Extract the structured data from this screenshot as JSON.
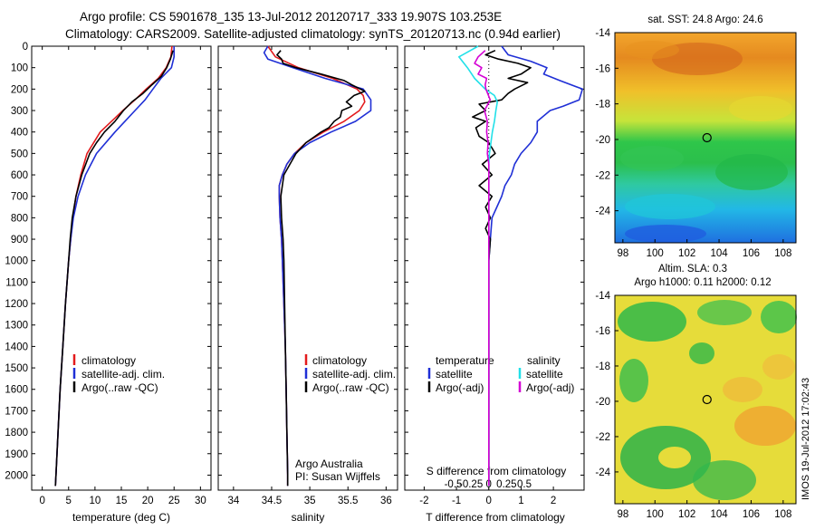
{
  "header": {
    "line1": "Argo profile: CS 5901678_135 13-Jul-2012 20120717_333 19.907S 103.253E",
    "line2": "Climatology: CARS2009. Satellite-adjusted climatology: synTS_20120713.nc (0.94d earlier)"
  },
  "side_stamp": "IMOS 19-Jul-2012 17:02:43",
  "colors": {
    "climatology": "#e31a1c",
    "satellite": "#1f2fd6",
    "argo": "#000000",
    "argo_s": "#d400d4",
    "sat_s": "#22e0e8"
  },
  "chart_data": [
    {
      "id": "temperature",
      "type": "line",
      "xlabel": "temperature (deg C)",
      "xlim": [
        -2,
        32
      ],
      "xticks": [
        0,
        5,
        10,
        15,
        20,
        25,
        30
      ],
      "ylim": [
        2070,
        0
      ],
      "yticks": [
        0,
        100,
        200,
        300,
        400,
        500,
        600,
        700,
        800,
        900,
        1000,
        1100,
        1200,
        1300,
        1400,
        1500,
        1600,
        1700,
        1800,
        1900,
        2000
      ],
      "legend": [
        "climatology",
        "satellite-adj. clim.",
        "Argo(..raw -QC)"
      ],
      "series": [
        {
          "name": "climatology",
          "color": "#e31a1c",
          "depth": [
            0,
            50,
            100,
            150,
            200,
            250,
            300,
            400,
            500,
            600,
            700,
            800,
            900,
            1000,
            1200,
            1400,
            1600,
            1800,
            2000,
            2050
          ],
          "values": [
            24.6,
            24.4,
            23.5,
            22.0,
            19.7,
            17.6,
            15.3,
            11.0,
            8.5,
            7.3,
            6.4,
            5.8,
            5.4,
            5.0,
            4.4,
            3.9,
            3.4,
            3.0,
            2.6,
            2.5
          ]
        },
        {
          "name": "satellite-adj. clim.",
          "color": "#1f2fd6",
          "depth": [
            0,
            50,
            100,
            150,
            200,
            250,
            300,
            400,
            500,
            600,
            700,
            800,
            900,
            1000,
            1200,
            1400,
            1600,
            1800,
            2000,
            2050
          ],
          "values": [
            25.0,
            25.0,
            24.5,
            22.5,
            21.0,
            19.5,
            17.6,
            13.8,
            10.3,
            8.2,
            6.8,
            5.9,
            5.4,
            5.0,
            4.4,
            3.9,
            3.4,
            3.0,
            2.6,
            2.5
          ]
        },
        {
          "name": "Argo(..raw -QC)",
          "color": "#000000",
          "depth": [
            20,
            60,
            100,
            140,
            180,
            220,
            260,
            300,
            350,
            400,
            450,
            500,
            600,
            700,
            800,
            900,
            1000,
            1200,
            1400,
            1600,
            1800,
            2000,
            2050
          ],
          "values": [
            24.8,
            24.3,
            23.6,
            22.6,
            20.8,
            19.1,
            17.0,
            15.4,
            13.8,
            11.8,
            10.3,
            9.0,
            7.5,
            6.4,
            5.7,
            5.3,
            5.0,
            4.4,
            3.9,
            3.4,
            3.0,
            2.6,
            2.5
          ]
        }
      ]
    },
    {
      "id": "salinity",
      "type": "line",
      "xlabel": "salinity",
      "xlim": [
        33.8,
        36.15
      ],
      "xticks": [
        34,
        34.5,
        35,
        35.5,
        36
      ],
      "ylim": [
        2070,
        0
      ],
      "legend": [
        "climatology",
        "satellite-adj. clim.",
        "Argo(..raw -QC)"
      ],
      "annotation": [
        "Argo Australia",
        "PI: Susan Wijffels"
      ],
      "series": [
        {
          "name": "climatology",
          "color": "#e31a1c",
          "depth": [
            0,
            50,
            100,
            150,
            200,
            230,
            260,
            300,
            350,
            400,
            450,
            500,
            550,
            600,
            650,
            700,
            800,
            900,
            1000,
            1200,
            1400,
            1600,
            1800,
            2000,
            2050
          ],
          "values": [
            34.45,
            34.55,
            34.85,
            35.3,
            35.62,
            35.7,
            35.72,
            35.65,
            35.45,
            35.18,
            34.95,
            34.8,
            34.7,
            34.64,
            34.6,
            34.6,
            34.61,
            34.63,
            34.64,
            34.66,
            34.68,
            34.69,
            34.7,
            34.71,
            34.71
          ]
        },
        {
          "name": "satellite-adj. clim.",
          "color": "#1f2fd6",
          "depth": [
            0,
            30,
            60,
            100,
            150,
            200,
            250,
            300,
            350,
            400,
            450,
            500,
            550,
            600,
            650,
            700,
            800,
            900,
            1000,
            1200,
            1400,
            1600,
            1800,
            2000,
            2050
          ],
          "values": [
            34.45,
            34.4,
            34.45,
            34.78,
            35.2,
            35.7,
            35.8,
            35.8,
            35.6,
            35.28,
            35.0,
            34.8,
            34.7,
            34.64,
            34.6,
            34.6,
            34.61,
            34.63,
            34.64,
            34.66,
            34.68,
            34.69,
            34.7,
            34.71,
            34.71
          ]
        },
        {
          "name": "Argo(..raw -QC)",
          "color": "#000000",
          "depth": [
            20,
            40,
            60,
            80,
            100,
            130,
            160,
            180,
            210,
            230,
            260,
            280,
            300,
            330,
            350,
            380,
            400,
            450,
            500,
            600,
            700,
            800,
            900,
            1000,
            1200,
            1400,
            1600,
            1800,
            2000,
            2050
          ],
          "values": [
            34.62,
            34.57,
            34.63,
            34.65,
            34.82,
            35.15,
            35.45,
            35.55,
            35.72,
            35.58,
            35.48,
            35.55,
            35.42,
            35.4,
            35.32,
            35.25,
            35.15,
            34.95,
            34.82,
            34.66,
            34.62,
            34.63,
            34.65,
            34.66,
            34.67,
            34.68,
            34.69,
            34.7,
            34.71,
            34.71
          ]
        }
      ]
    },
    {
      "id": "differences",
      "type": "line",
      "xlabel": "T difference from climatology",
      "xlabel_top": "S difference from climatology",
      "xlim": [
        -2.6,
        2.95
      ],
      "xticks": [
        -2,
        -1,
        0,
        1,
        2
      ],
      "s_ticks": [
        -0.5,
        -0.25,
        0,
        0.25,
        0.5
      ],
      "s_tick_labels": [
        "-0.5",
        "-0.25",
        "0",
        "0.25",
        "0.5"
      ],
      "zero_line": 0,
      "legend_temperature": [
        "temperature",
        "satellite",
        "Argo(-adj)"
      ],
      "legend_salinity": [
        "salinity",
        "satellite",
        "Argo(-adj)"
      ],
      "series": [
        {
          "name": "satellite",
          "kind": "temperature",
          "color": "#1f2fd6",
          "depth": [
            0,
            40,
            70,
            100,
            130,
            160,
            200,
            250,
            280,
            300,
            350,
            400,
            450,
            500,
            550,
            600,
            650,
            700,
            750,
            800,
            900,
            1000,
            1200,
            1500,
            1800,
            2000,
            2050
          ],
          "values": [
            0.4,
            0.6,
            1.3,
            1.8,
            1.7,
            2.2,
            2.9,
            2.8,
            2.3,
            1.9,
            1.5,
            1.5,
            1.3,
            1.0,
            0.8,
            0.7,
            0.5,
            0.4,
            0.25,
            0.1,
            0.05,
            0.0,
            0.0,
            0.0,
            0.0,
            0.0,
            0.0
          ]
        },
        {
          "name": "Argo(-adj)",
          "kind": "temperature",
          "color": "#000000",
          "depth": [
            20,
            40,
            60,
            80,
            100,
            130,
            150,
            170,
            200,
            220,
            250,
            270,
            300,
            330,
            350,
            380,
            420,
            450,
            500,
            550,
            600,
            650,
            700,
            750,
            800,
            850,
            900,
            1000,
            1200,
            1500,
            1800,
            2000,
            2050
          ],
          "values": [
            0.2,
            -0.1,
            0.3,
            0.9,
            1.3,
            1.0,
            0.6,
            1.2,
            0.8,
            0.6,
            0.4,
            -0.3,
            -0.1,
            -0.5,
            -0.1,
            -0.4,
            -0.3,
            0.0,
            0.2,
            -0.2,
            0.1,
            -0.3,
            0.1,
            -0.1,
            0.05,
            -0.1,
            0.05,
            0.0,
            0.0,
            0.0,
            0.0,
            0.0,
            0.0
          ]
        },
        {
          "name": "satellite",
          "kind": "salinity",
          "color": "#22e0e8",
          "depth": [
            0,
            50,
            100,
            150,
            200,
            230,
            260,
            300,
            350,
            400,
            450,
            500,
            550,
            600,
            700,
            800,
            1000,
            1500,
            2000,
            2050
          ],
          "values": [
            -0.15,
            -0.42,
            -0.3,
            -0.2,
            -0.05,
            0.08,
            0.12,
            0.1,
            0.08,
            0.05,
            0.03,
            0.01,
            0.0,
            0.0,
            0.0,
            0.0,
            0.0,
            0.0,
            0.0,
            0.0
          ]
        },
        {
          "name": "Argo(-adj)",
          "kind": "salinity",
          "color": "#d400d4",
          "depth": [
            20,
            50,
            80,
            100,
            130,
            150,
            180,
            200,
            250,
            300,
            350,
            400,
            450,
            500,
            550,
            600,
            650,
            700,
            800,
            1000,
            1500,
            2000,
            2050
          ],
          "values": [
            -0.05,
            -0.15,
            -0.2,
            -0.1,
            -0.15,
            -0.03,
            -0.05,
            -0.04,
            0.02,
            -0.06,
            -0.02,
            -0.03,
            -0.01,
            -0.02,
            0.0,
            0.0,
            0.0,
            0.0,
            0.0,
            0.0,
            0.0,
            0.0,
            0.0
          ]
        }
      ]
    },
    {
      "id": "sst-map",
      "type": "heatmap",
      "title": "sat. SST: 24.8 Argo: 24.6",
      "xlim": [
        97.5,
        108.8
      ],
      "ylim": [
        -25.8,
        -14
      ],
      "xticks": [
        98,
        100,
        102,
        104,
        106,
        108
      ],
      "yticks": [
        -14,
        -16,
        -18,
        -20,
        -22,
        -24
      ],
      "marker": {
        "lon": 103.25,
        "lat": -19.9
      }
    },
    {
      "id": "sla-map",
      "type": "heatmap",
      "title": "Altim. SLA: 0.3",
      "subtitle": "Argo h1000: 0.11 h2000: 0.12",
      "xlim": [
        97.5,
        108.8
      ],
      "ylim": [
        -25.8,
        -14
      ],
      "xticks": [
        98,
        100,
        102,
        104,
        106,
        108
      ],
      "yticks": [
        -14,
        -16,
        -18,
        -20,
        -22,
        -24
      ],
      "marker": {
        "lon": 103.25,
        "lat": -19.9
      }
    }
  ]
}
